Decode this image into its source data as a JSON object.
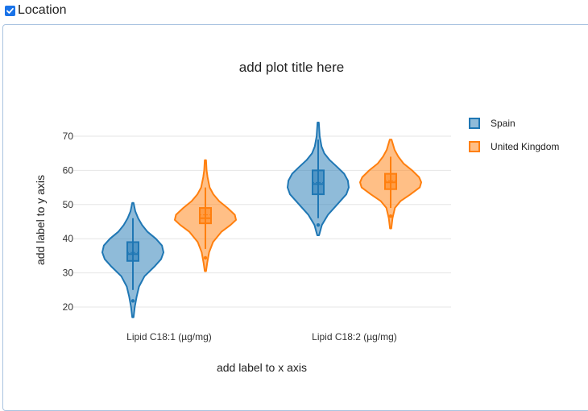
{
  "filter": {
    "checkbox_label": "Location",
    "checked": true
  },
  "chart_data": {
    "type": "violin",
    "title": "add plot title here",
    "xlabel": "add label to x axis",
    "ylabel": "add label to y axis",
    "categories": [
      "Lipid  C18:1 (µg/mg)",
      "Lipid  C18:2 (µg/mg)"
    ],
    "y_ticks": [
      20,
      30,
      40,
      50,
      60,
      70
    ],
    "ylim": [
      15,
      75
    ],
    "grid": true,
    "legend_position": "top-right",
    "series": [
      {
        "name": "Spain",
        "color": "#1f77b4",
        "groups": [
          {
            "min": 17,
            "max": 50.5,
            "q1": 33.5,
            "median": 35.5,
            "q3": 39,
            "mean": 35.5,
            "lower_fence": 25,
            "upper_fence": 46,
            "profile": [
              [
                17,
                0.02
              ],
              [
                20,
                0.06
              ],
              [
                23,
                0.12
              ],
              [
                26,
                0.2
              ],
              [
                29,
                0.38
              ],
              [
                32,
                0.72
              ],
              [
                34,
                0.92
              ],
              [
                36,
                1.0
              ],
              [
                38,
                0.95
              ],
              [
                40,
                0.75
              ],
              [
                42,
                0.48
              ],
              [
                44,
                0.3
              ],
              [
                46,
                0.17
              ],
              [
                48,
                0.08
              ],
              [
                50.5,
                0.02
              ]
            ]
          },
          {
            "min": 41,
            "max": 74,
            "q1": 53,
            "median": 56,
            "q3": 60,
            "mean": 56,
            "lower_fence": 46,
            "upper_fence": 69,
            "profile": [
              [
                41,
                0.03
              ],
              [
                44,
                0.12
              ],
              [
                47,
                0.32
              ],
              [
                50,
                0.62
              ],
              [
                53,
                0.92
              ],
              [
                55,
                1.0
              ],
              [
                57,
                0.97
              ],
              [
                59,
                0.85
              ],
              [
                61,
                0.62
              ],
              [
                63,
                0.38
              ],
              [
                65,
                0.2
              ],
              [
                67,
                0.11
              ],
              [
                70,
                0.05
              ],
              [
                74,
                0.02
              ]
            ]
          }
        ]
      },
      {
        "name": "United Kingdom",
        "color": "#ff7f0e",
        "groups": [
          {
            "min": 30.5,
            "max": 63,
            "q1": 44.5,
            "median": 46,
            "q3": 49,
            "mean": 46.5,
            "lower_fence": 37,
            "upper_fence": 55,
            "profile": [
              [
                30.5,
                0.02
              ],
              [
                33,
                0.06
              ],
              [
                36,
                0.12
              ],
              [
                39,
                0.25
              ],
              [
                42,
                0.52
              ],
              [
                44,
                0.82
              ],
              [
                45.5,
                1.0
              ],
              [
                47,
                0.96
              ],
              [
                49,
                0.72
              ],
              [
                51,
                0.45
              ],
              [
                53,
                0.26
              ],
              [
                55,
                0.14
              ],
              [
                58,
                0.07
              ],
              [
                60,
                0.04
              ],
              [
                63,
                0.02
              ]
            ]
          },
          {
            "min": 43,
            "max": 69,
            "q1": 54.5,
            "median": 56.5,
            "q3": 59,
            "mean": 56.5,
            "lower_fence": 49,
            "upper_fence": 64,
            "profile": [
              [
                43,
                0.02
              ],
              [
                46,
                0.06
              ],
              [
                49,
                0.14
              ],
              [
                51,
                0.32
              ],
              [
                53,
                0.65
              ],
              [
                55,
                0.95
              ],
              [
                56.5,
                1.0
              ],
              [
                58,
                0.93
              ],
              [
                60,
                0.7
              ],
              [
                62,
                0.42
              ],
              [
                64,
                0.25
              ],
              [
                66,
                0.13
              ],
              [
                69,
                0.03
              ]
            ]
          }
        ]
      }
    ]
  }
}
